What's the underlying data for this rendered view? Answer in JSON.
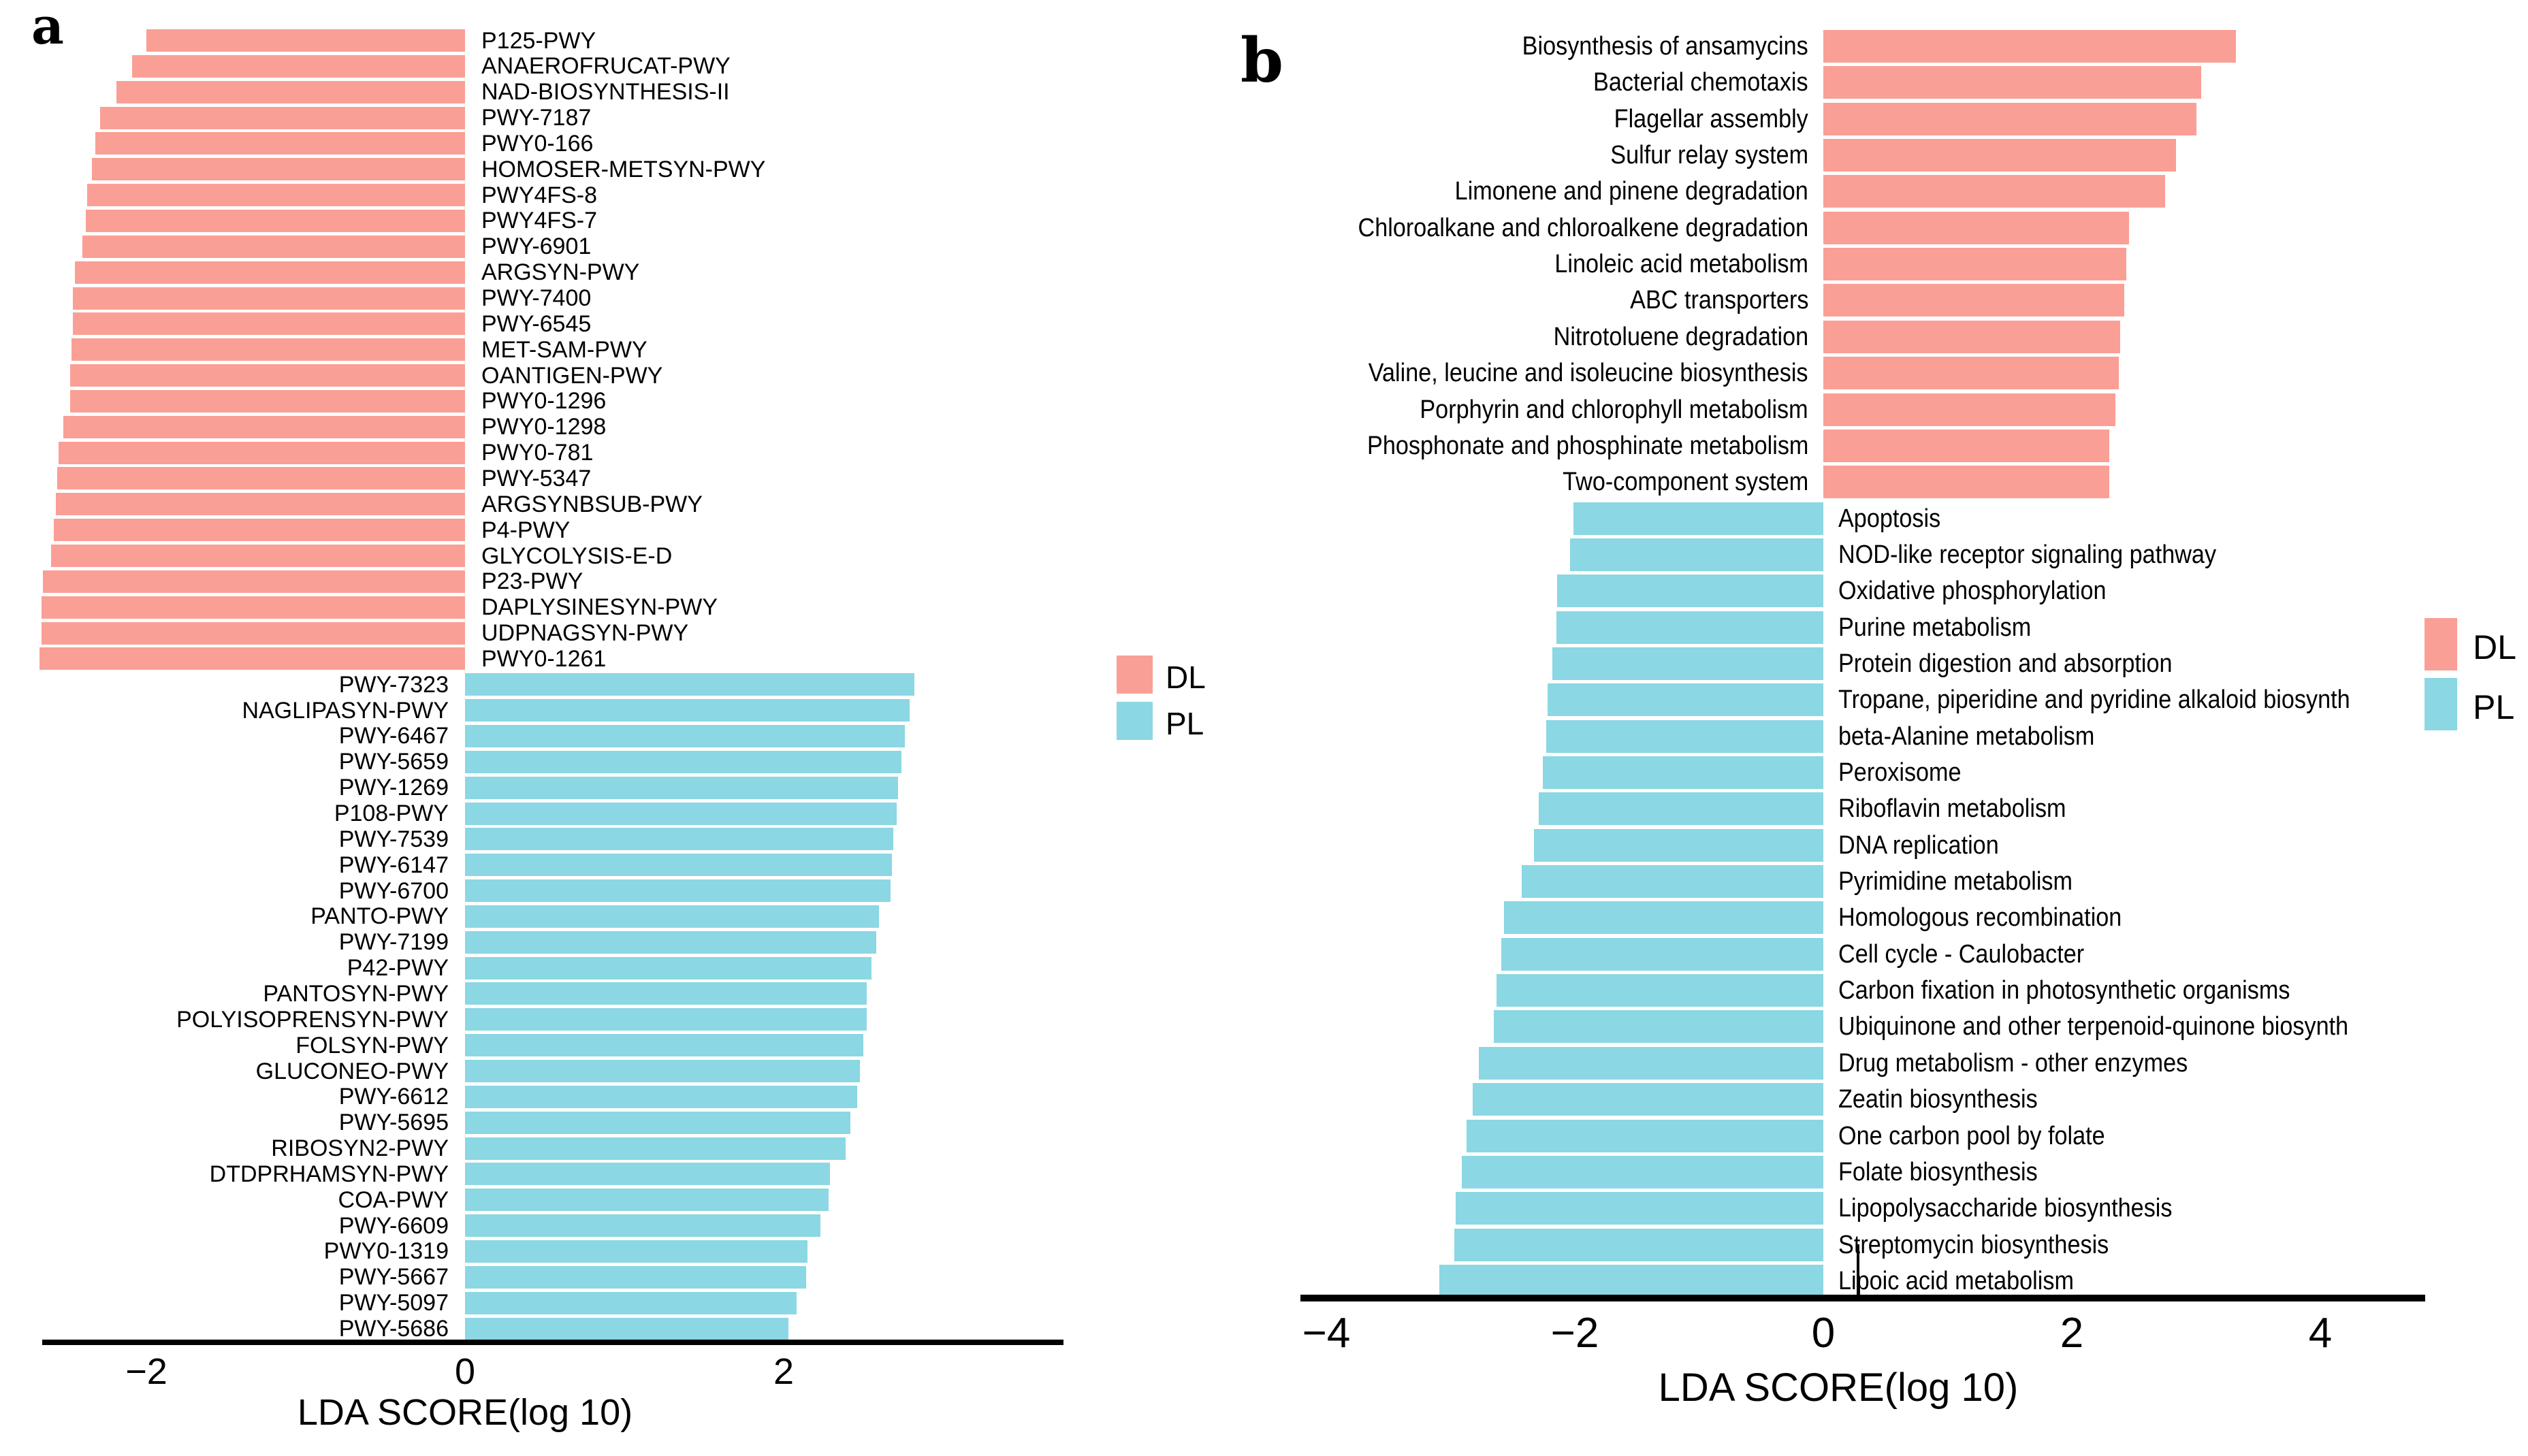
{
  "legend": {
    "dl_label": "DL",
    "pl_label": "PL",
    "dl_color": "#FA9F96",
    "pl_color": "#8BD7E3"
  },
  "chart_data": [
    {
      "type": "bar",
      "orientation": "horizontal",
      "panel_letter": "a",
      "xlabel": "LDA SCORE(log 10)",
      "xlim": [
        -2.9,
        3.1
      ],
      "grid": false,
      "legend_position": "right",
      "xticks": [
        {
          "value": -2,
          "label": "−2"
        },
        {
          "value": 0,
          "label": "0"
        },
        {
          "value": 2,
          "label": "2"
        }
      ],
      "series": [
        {
          "name": "DL",
          "color": "#FA9F96",
          "categories": [
            "P125-PWY",
            "ANAEROFRUCAT-PWY",
            "NAD-BIOSYNTHESIS-II",
            "PWY-7187",
            "PWY0-166",
            "HOMOSER-METSYN-PWY",
            "PWY4FS-8",
            "PWY4FS-7",
            "PWY-6901",
            "ARGSYN-PWY",
            "PWY-7400",
            "PWY-6545",
            "MET-SAM-PWY",
            "OANTIGEN-PWY",
            "PWY0-1296",
            "PWY0-1298",
            "PWY0-781",
            "PWY-5347",
            "ARGSYNBSUB-PWY",
            "P4-PWY",
            "GLYCOLYSIS-E-D",
            "P23-PWY",
            "DAPLYSINESYN-PWY",
            "UDPNAGSYN-PWY",
            "PWY0-1261"
          ],
          "values": [
            -2.0,
            -2.09,
            -2.19,
            -2.29,
            -2.32,
            -2.34,
            -2.37,
            -2.38,
            -2.4,
            -2.45,
            -2.46,
            -2.46,
            -2.47,
            -2.48,
            -2.48,
            -2.52,
            -2.55,
            -2.56,
            -2.57,
            -2.58,
            -2.6,
            -2.65,
            -2.66,
            -2.66,
            -2.67
          ]
        },
        {
          "name": "PL",
          "color": "#8BD7E3",
          "categories": [
            "PWY-7323",
            "NAGLIPASYN-PWY",
            "PWY-6467",
            "PWY-5659",
            "PWY-1269",
            "P108-PWY",
            "PWY-7539",
            "PWY-6147",
            "PWY-6700",
            "PANTO-PWY",
            "PWY-7199",
            "P42-PWY",
            "PANTOSYN-PWY",
            "POLYISOPRENSYN-PWY",
            "FOLSYN-PWY",
            "GLUCONEO-PWY",
            "PWY-6612",
            "PWY-5695",
            "RIBOSYN2-PWY",
            "DTDPRHAMSYN-PWY",
            "COA-PWY",
            "PWY-6609",
            "PWY0-1319",
            "PWY-5667",
            "PWY-5097",
            "PWY-5686"
          ],
          "values": [
            2.82,
            2.79,
            2.76,
            2.74,
            2.72,
            2.71,
            2.69,
            2.68,
            2.67,
            2.6,
            2.58,
            2.55,
            2.52,
            2.52,
            2.5,
            2.48,
            2.46,
            2.42,
            2.39,
            2.29,
            2.28,
            2.23,
            2.15,
            2.14,
            2.08,
            2.03
          ]
        }
      ]
    },
    {
      "type": "bar",
      "orientation": "horizontal",
      "panel_letter": "b",
      "xlabel": "LDA SCORE(log 10)",
      "xlim": [
        -4.5,
        4.5
      ],
      "grid": false,
      "legend_position": "right",
      "xticks": [
        {
          "value": -4,
          "label": "−4"
        },
        {
          "value": -2,
          "label": "−2"
        },
        {
          "value": 0,
          "label": "0"
        },
        {
          "value": 2,
          "label": "2"
        },
        {
          "value": 4,
          "label": "4"
        }
      ],
      "series": [
        {
          "name": "DL",
          "color": "#FA9F96",
          "categories": [
            "Biosynthesis of ansamycins",
            "Bacterial chemotaxis",
            "Flagellar assembly",
            "Sulfur relay system",
            "Limonene and pinene degradation",
            "Chloroalkane and chloroalkene degradation",
            "Linoleic acid metabolism",
            "ABC transporters",
            "Nitrotoluene degradation",
            "Valine, leucine and isoleucine biosynthesis",
            "Porphyrin and chlorophyll metabolism",
            "Phosphonate and phosphinate metabolism",
            "Two-component system"
          ],
          "values": [
            3.32,
            3.04,
            3.0,
            2.84,
            2.75,
            2.46,
            2.44,
            2.42,
            2.39,
            2.38,
            2.35,
            2.3,
            2.3
          ]
        },
        {
          "name": "PL",
          "color": "#8BD7E3",
          "categories": [
            "Apoptosis",
            "NOD-like receptor signaling pathway",
            "Oxidative phosphorylation",
            "Purine metabolism",
            "Protein digestion and absorption",
            "Tropane, piperidine and pyridine alkaloid biosynth",
            "beta-Alanine metabolism",
            "Peroxisome",
            "Riboflavin metabolism",
            "DNA replication",
            "Pyrimidine metabolism",
            "Homologous recombination",
            "Cell cycle - Caulobacter",
            "Carbon fixation in photosynthetic organisms",
            "Ubiquinone and other terpenoid-quinone biosynth",
            "Drug metabolism - other enzymes",
            "Zeatin biosynthesis",
            "One carbon pool by folate",
            "Folate biosynthesis",
            "Lipopolysaccharide biosynthesis",
            "Streptomycin biosynthesis",
            "Lipoic acid metabolism"
          ],
          "values": [
            -2.01,
            -2.04,
            -2.14,
            -2.15,
            -2.18,
            -2.22,
            -2.23,
            -2.26,
            -2.29,
            -2.33,
            -2.43,
            -2.57,
            -2.59,
            -2.63,
            -2.65,
            -2.77,
            -2.82,
            -2.87,
            -2.91,
            -2.96,
            -2.97,
            -3.09
          ]
        }
      ]
    }
  ]
}
